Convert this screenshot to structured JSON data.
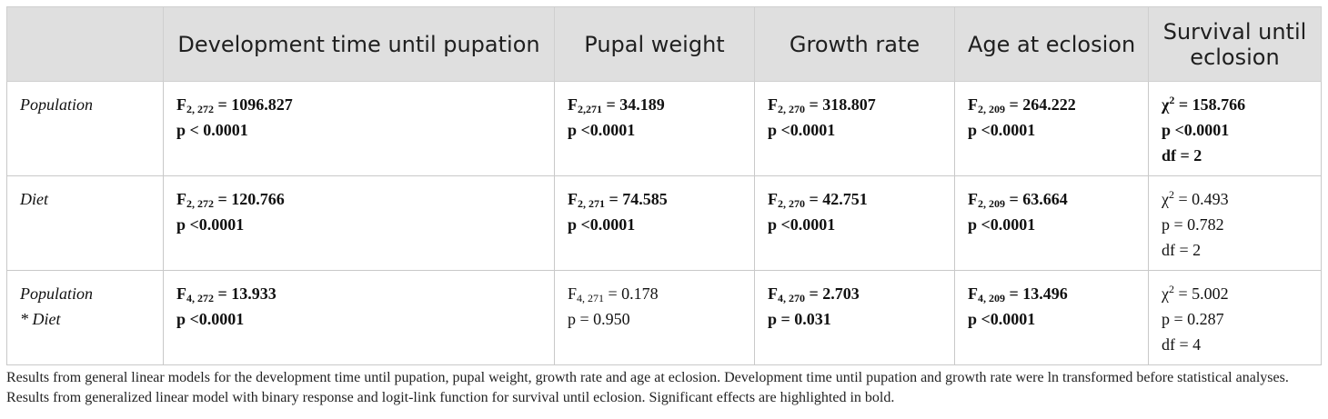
{
  "headers": {
    "empty": "",
    "development_time": "Development time until pupation",
    "pupal_weight": "Pupal weight",
    "growth_rate": "Growth rate",
    "age_at_eclosion": "Age at eclosion",
    "survival": "Survival until eclosion"
  },
  "rows": [
    {
      "label_lines": [
        "Population"
      ],
      "dev": {
        "F": "F",
        "sub": "2, 272",
        "eq": " = 1096.827",
        "p": "p < 0.0001"
      },
      "pupal": {
        "F": "F",
        "sub": "2,271",
        "eq": " = 34.189",
        "p": "p <0.0001"
      },
      "growth": {
        "F": "F",
        "sub": "2, 270",
        "eq": " = 318.807",
        "p": "p <0.0001"
      },
      "age": {
        "F": "F",
        "sub": "2, 209",
        "eq": " = 264.222",
        "p": "p <0.0001"
      },
      "surv": {
        "chi": "χ",
        "sup": "2",
        "eq": " = 158.766",
        "p": "p <0.0001",
        "df": "df = 2"
      }
    },
    {
      "label_lines": [
        "Diet"
      ],
      "dev": {
        "F": "F",
        "sub": "2, 272",
        "eq": " = 120.766",
        "p": "p <0.0001"
      },
      "pupal": {
        "F": "F",
        "sub": "2, 271",
        "eq": " = 74.585",
        "p": "p <0.0001"
      },
      "growth": {
        "F": "F",
        "sub": "2, 270",
        "eq": " = 42.751",
        "p": "p <0.0001"
      },
      "age": {
        "F": "F",
        "sub": "2, 209",
        "eq": " = 63.664",
        "p": "p <0.0001"
      },
      "surv": {
        "chi": "χ",
        "sup": "2",
        "eq": " = 0.493",
        "p": "p = 0.782",
        "df": "df = 2"
      }
    },
    {
      "label_lines": [
        "Population",
        "* Diet"
      ],
      "dev": {
        "F": "F",
        "sub": "4, 272",
        "eq": " = 13.933",
        "p": "p <0.0001"
      },
      "pupal": {
        "F": "F",
        "sub": "4, 271",
        "eq": " = 0.178",
        "p": "p = 0.950"
      },
      "growth": {
        "F": "F",
        "sub": "4, 270",
        "eq": " = 2.703",
        "p": "p = 0.031"
      },
      "age": {
        "F": "F",
        "sub": "4, 209",
        "eq": " = 13.496",
        "p": "p <0.0001"
      },
      "surv": {
        "chi": "χ",
        "sup": "2",
        "eq": " = 5.002",
        "p": "p = 0.287",
        "df": "df = 4"
      }
    }
  ],
  "caption": "Results from general linear models for the development time until pupation, pupal weight, growth rate and age at eclosion. Development time until pupation and growth rate were ln transformed before statistical analyses. Results from generalized linear model with binary response and logit-link function for survival until eclosion. Significant effects are highlighted in bold."
}
